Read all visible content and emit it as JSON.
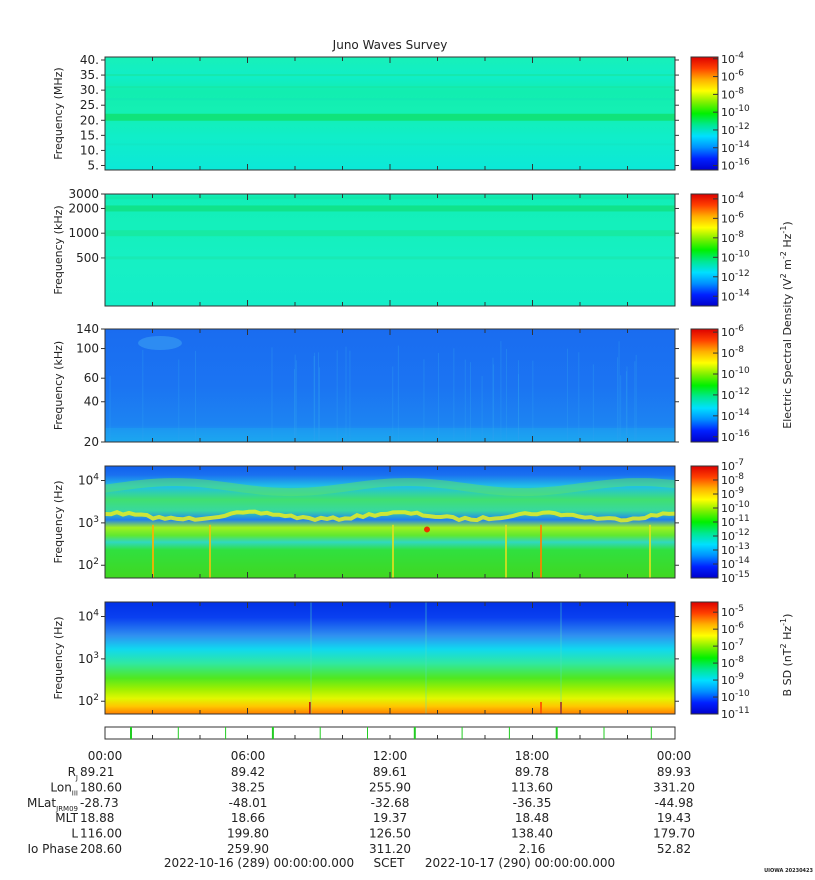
{
  "title": "Juno Waves Survey",
  "stamp": "UIOWA 20230423",
  "colors": {
    "cmap": [
      "#0000cc",
      "#0020ff",
      "#0090ff",
      "#00e0ff",
      "#00e890",
      "#00f000",
      "#80f000",
      "#ffff00",
      "#ffb000",
      "#ff4000",
      "#dd0000"
    ]
  },
  "chart_data": [
    {
      "type": "heatmap",
      "panel": "hfwbr",
      "ylabel": "Frequency (MHz)",
      "scale": "linear",
      "ylim": [
        3.5,
        41
      ],
      "yticks": [
        {
          "v": 40,
          "t": "40."
        },
        {
          "v": 35,
          "t": "35."
        },
        {
          "v": 30,
          "t": "30."
        },
        {
          "v": 25,
          "t": "25."
        },
        {
          "v": 20,
          "t": "20."
        },
        {
          "v": 15,
          "t": "15."
        },
        {
          "v": 10,
          "t": "10."
        },
        {
          "v": 5,
          "t": "5."
        }
      ],
      "zscale": "log",
      "zticks": [
        {
          "e": "-4"
        },
        {
          "e": "-6"
        },
        {
          "e": "-8"
        },
        {
          "e": "-10"
        },
        {
          "e": "-12"
        },
        {
          "e": "-14"
        },
        {
          "e": "-16"
        }
      ],
      "zrange": [
        -16.5,
        -3.8
      ],
      "dominant_level": "cyan-green"
    },
    {
      "type": "heatmap",
      "panel": "hf",
      "ylabel": "Frequency (kHz)",
      "scale": "log",
      "ylim": [
        130,
        3000
      ],
      "yticks": [
        {
          "v": 3000,
          "t": "3000"
        },
        {
          "v": 2000,
          "t": "2000"
        },
        {
          "v": 1000,
          "t": "1000"
        },
        {
          "v": 500,
          "t": "500"
        }
      ],
      "zscale": "log",
      "zticks": [
        {
          "e": "-4"
        },
        {
          "e": "-6"
        },
        {
          "e": "-8"
        },
        {
          "e": "-10"
        },
        {
          "e": "-12"
        },
        {
          "e": "-14"
        }
      ],
      "zrange": [
        -15,
        -3.5
      ],
      "dominant_level": "cyan-green"
    },
    {
      "type": "heatmap",
      "panel": "lfr-hi",
      "ylabel": "Frequency (kHz)",
      "scale": "log",
      "ylim": [
        20,
        140
      ],
      "yticks": [
        {
          "v": 140,
          "t": "140"
        },
        {
          "v": 100,
          "t": "100"
        },
        {
          "v": 60,
          "t": "60"
        },
        {
          "v": 40,
          "t": "40"
        },
        {
          "v": 20,
          "t": "20"
        }
      ],
      "zscale": "log",
      "zticks": [
        {
          "e": "-6"
        },
        {
          "e": "-8"
        },
        {
          "e": "-10"
        },
        {
          "e": "-12"
        },
        {
          "e": "-14"
        },
        {
          "e": "-16"
        }
      ],
      "zrange": [
        -16.5,
        -5.7
      ],
      "dominant_level": "blue"
    },
    {
      "type": "heatmap",
      "panel": "lfr-lo",
      "ylabel": "Frequency (Hz)",
      "scale": "log",
      "ylim": [
        50,
        22000
      ],
      "yticks": [
        {
          "v": 10000,
          "b": "10",
          "e": "4"
        },
        {
          "v": 1000,
          "b": "10",
          "e": "3"
        },
        {
          "v": 100,
          "b": "10",
          "e": "2"
        }
      ],
      "zscale": "log",
      "zticks": [
        {
          "e": "-7"
        },
        {
          "e": "-8"
        },
        {
          "e": "-9"
        },
        {
          "e": "-10"
        },
        {
          "e": "-11"
        },
        {
          "e": "-12"
        },
        {
          "e": "-13"
        },
        {
          "e": "-14"
        },
        {
          "e": "-15"
        }
      ],
      "zrange": [
        -15,
        -7
      ],
      "dominant_level": "green lower / blue upper"
    },
    {
      "type": "heatmap",
      "panel": "bfield",
      "ylabel": "Frequency (Hz)",
      "scale": "log",
      "ylim": [
        50,
        22000
      ],
      "yticks": [
        {
          "v": 10000,
          "b": "10",
          "e": "4"
        },
        {
          "v": 1000,
          "b": "10",
          "e": "3"
        },
        {
          "v": 100,
          "b": "10",
          "e": "2"
        }
      ],
      "zscale": "log",
      "zticks": [
        {
          "e": "-5"
        },
        {
          "e": "-6"
        },
        {
          "e": "-7"
        },
        {
          "e": "-8"
        },
        {
          "e": "-9"
        },
        {
          "e": "-10"
        },
        {
          "e": "-11"
        }
      ],
      "zrange": [
        -11,
        -4.4
      ],
      "dominant_level": "yellow bottom to blue top"
    }
  ],
  "colorbar_labels": {
    "electric": {
      "pre": "Electric Spectral Density (V",
      "e1": "2",
      "mid1": " m",
      "e2": "-2",
      "mid2": " Hz",
      "e3": "-1",
      "post": ")"
    },
    "magnetic": {
      "pre": "B SD (nT",
      "e1": "2",
      "mid2": " Hz",
      "e3": "-1",
      "post": ")"
    }
  },
  "ephemeris": {
    "times": [
      "00:00",
      "06:00",
      "12:00",
      "18:00",
      "00:00"
    ],
    "rows": [
      {
        "label": "R",
        "sub": "J",
        "values": [
          "89.21",
          "89.42",
          "89.61",
          "89.78",
          "89.93"
        ]
      },
      {
        "label": "Lon",
        "sub": "III",
        "values": [
          "180.60",
          "38.25",
          "255.90",
          "113.60",
          "331.20"
        ]
      },
      {
        "label": "MLat",
        "sub": "JRM09",
        "values": [
          "-28.73",
          "-48.01",
          "-32.68",
          "-36.35",
          "-44.98"
        ]
      },
      {
        "label": "MLT",
        "sub": "",
        "values": [
          "18.88",
          "18.66",
          "19.37",
          "18.48",
          "19.43"
        ]
      },
      {
        "label": "L",
        "sub": "",
        "values": [
          "116.00",
          "199.80",
          "126.50",
          "138.40",
          "179.70"
        ]
      },
      {
        "label": "Io Phase",
        "sub": "",
        "values": [
          "208.60",
          "259.90",
          "311.20",
          "2.16",
          "52.82"
        ]
      }
    ],
    "footer": {
      "start": "2022-10-16 (289) 00:00:00.000",
      "frame": "SCET",
      "end": "2022-10-17 (290) 00:00:00.000"
    }
  }
}
